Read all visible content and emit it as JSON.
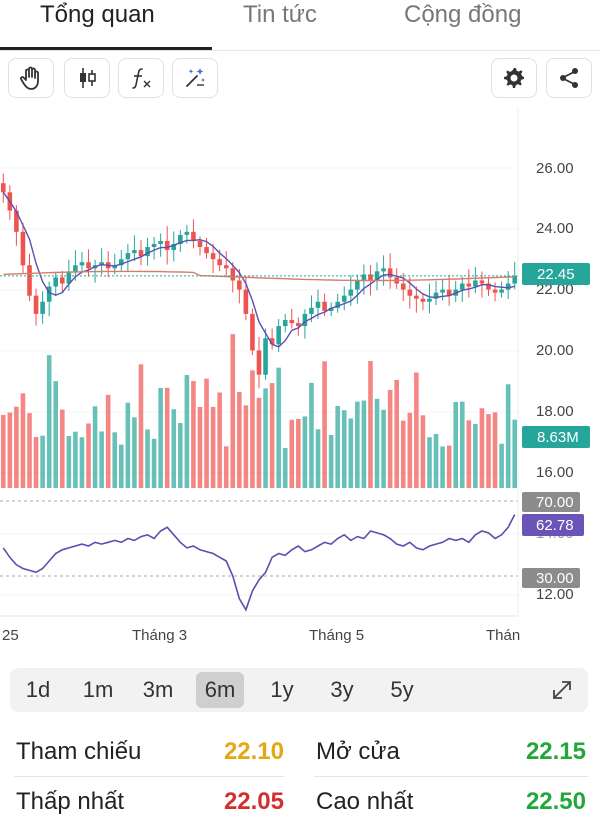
{
  "tabs": [
    {
      "label": "Tổng quan",
      "active": true
    },
    {
      "label": "Tin tức",
      "active": false
    },
    {
      "label": "Cộng đồng",
      "active": false
    }
  ],
  "toolbar": {
    "left_icons": [
      "hand-pan-icon",
      "candlestick-icon",
      "function-icon",
      "magic-wand-icon"
    ],
    "right_icons": [
      "gear-icon",
      "share-icon"
    ]
  },
  "chart_data": {
    "type": "candlestick",
    "price_axis": {
      "ticks": [
        "26.00",
        "24.00",
        "22.00",
        "20.00",
        "18.00",
        "16.00",
        "14.00",
        "12.00"
      ],
      "range": [
        11.2,
        27.5
      ]
    },
    "last_price_label": "22.45",
    "reference_price": 22.45,
    "volume_label": "8.63M",
    "rsi": {
      "value_label": "62.78",
      "upper_label": "70.00",
      "lower_label": "30.00",
      "values": [
        45,
        40,
        36,
        34,
        33,
        32,
        34,
        38,
        42,
        44,
        45,
        46,
        47,
        46,
        48,
        47,
        48,
        49,
        48,
        50,
        49,
        51,
        52,
        50,
        54,
        56,
        52,
        48,
        45,
        46,
        44,
        43,
        42,
        40,
        38,
        30,
        18,
        12,
        22,
        28,
        32,
        40,
        42,
        41,
        44,
        46,
        43,
        44,
        46,
        48,
        47,
        50,
        52,
        49,
        51,
        50,
        54,
        53,
        52,
        50,
        47,
        46,
        48,
        45,
        44,
        46,
        47,
        48,
        50,
        49,
        50,
        48,
        52,
        54,
        53,
        50,
        52,
        56,
        62.78
      ]
    },
    "time_labels": [
      "25",
      "Tháng 3",
      "Tháng 5",
      "Thán"
    ],
    "up_color": "#26a69a",
    "down_color": "#ef5350",
    "closes": [
      25.2,
      24.6,
      23.9,
      22.8,
      21.8,
      21.2,
      21.6,
      22.1,
      22.4,
      22.2,
      22.6,
      22.8,
      22.9,
      22.7,
      22.8,
      22.9,
      22.7,
      22.8,
      23.0,
      23.2,
      23.3,
      23.1,
      23.4,
      23.5,
      23.6,
      23.3,
      23.5,
      23.8,
      23.9,
      23.6,
      23.4,
      23.2,
      23.0,
      22.8,
      22.7,
      22.3,
      22.0,
      21.2,
      20.0,
      19.2,
      20.4,
      20.2,
      20.8,
      21.0,
      20.9,
      20.8,
      21.2,
      21.4,
      21.6,
      21.3,
      21.4,
      21.6,
      21.8,
      22.0,
      22.3,
      22.5,
      22.3,
      22.6,
      22.7,
      22.4,
      22.2,
      22.0,
      21.8,
      21.7,
      21.6,
      21.7,
      21.9,
      22.0,
      21.8,
      22.0,
      22.2,
      22.1,
      22.3,
      22.2,
      22.0,
      21.9,
      22.0,
      22.2,
      22.45
    ]
  },
  "ranges": [
    {
      "label": "1d",
      "active": false
    },
    {
      "label": "1m",
      "active": false
    },
    {
      "label": "3m",
      "active": false
    },
    {
      "label": "6m",
      "active": true
    },
    {
      "label": "1y",
      "active": false
    },
    {
      "label": "3y",
      "active": false
    },
    {
      "label": "5y",
      "active": false
    }
  ],
  "stats": {
    "ref_label": "Tham chiếu",
    "ref_value": "22.10",
    "ref_color": "#e3a812",
    "open_label": "Mở cửa",
    "open_value": "22.15",
    "open_color": "#22a83a",
    "row2_left_label": "Thấp nhất",
    "row2_left_value": "22.05",
    "row2_left_color": "#d32f2f",
    "row2_right_label": "Cao nhất",
    "row2_right_value": "22.50",
    "row2_right_color": "#22a83a"
  }
}
